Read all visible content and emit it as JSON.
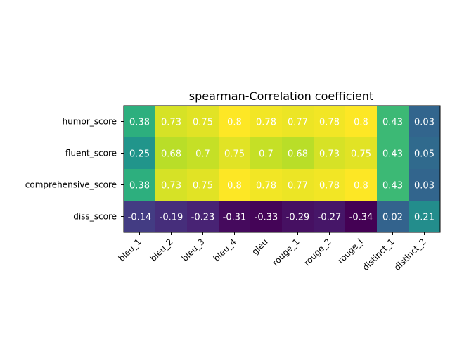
{
  "chart_data": {
    "type": "heatmap",
    "title": "spearman-Correlation coefficient",
    "rows": [
      "humor_score",
      "fluent_score",
      "comprehensive_score",
      "diss_score"
    ],
    "columns": [
      "bleu_1",
      "bleu_2",
      "bleu_3",
      "bleu_4",
      "gleu",
      "rouge_1",
      "rouge_2",
      "rouge_l",
      "distinct_1",
      "distinct_2"
    ],
    "values": [
      [
        0.38,
        0.73,
        0.75,
        0.8,
        0.78,
        0.77,
        0.78,
        0.8,
        0.43,
        0.03
      ],
      [
        0.25,
        0.68,
        0.7,
        0.75,
        0.7,
        0.68,
        0.73,
        0.75,
        0.43,
        0.05
      ],
      [
        0.38,
        0.73,
        0.75,
        0.8,
        0.78,
        0.77,
        0.78,
        0.8,
        0.43,
        0.03
      ],
      [
        -0.14,
        -0.19,
        -0.23,
        -0.31,
        -0.33,
        -0.29,
        -0.27,
        -0.34,
        0.02,
        0.21
      ]
    ],
    "colormap": "viridis",
    "grid": false
  }
}
